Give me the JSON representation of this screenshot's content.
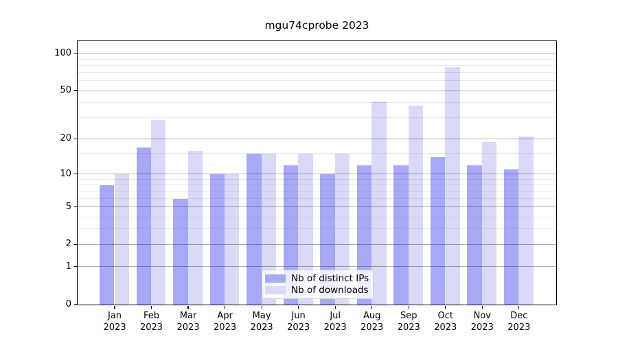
{
  "title": "mgu74cprobe 2023",
  "chart_data": {
    "type": "bar",
    "title": "mgu74cprobe 2023",
    "xlabel": "",
    "ylabel": "",
    "y_scale": "log1p",
    "categories": [
      "Jan",
      "Feb",
      "Mar",
      "Apr",
      "May",
      "Jun",
      "Jul",
      "Aug",
      "Sep",
      "Oct",
      "Nov",
      "Dec"
    ],
    "tick_year": "2023",
    "series": [
      {
        "name": "Nb of distinct IPs",
        "color": "#a9a9f5",
        "fill": "rgba(0,0,230,0.34)",
        "values": [
          8,
          17,
          6,
          10,
          15,
          12,
          10,
          12,
          12,
          14,
          12,
          11
        ]
      },
      {
        "name": "Nb of downloads",
        "color": "#dbdbf8",
        "fill": "rgba(0,0,210,0.145)",
        "values": [
          10,
          29,
          16,
          10,
          15,
          15,
          15,
          41,
          38,
          78,
          19,
          21
        ]
      }
    ],
    "y_axis": {
      "ticks": [
        0,
        1,
        2,
        5,
        10,
        20,
        50,
        100
      ],
      "minor_ticks": [
        3,
        4,
        6,
        7,
        8,
        9,
        15,
        30,
        40,
        60,
        70,
        80,
        90
      ],
      "ylim": [
        0,
        128
      ]
    },
    "grid": true,
    "legend_position": "lower center"
  },
  "legend": {
    "items": [
      "Nb of distinct IPs",
      "Nb of downloads"
    ]
  }
}
